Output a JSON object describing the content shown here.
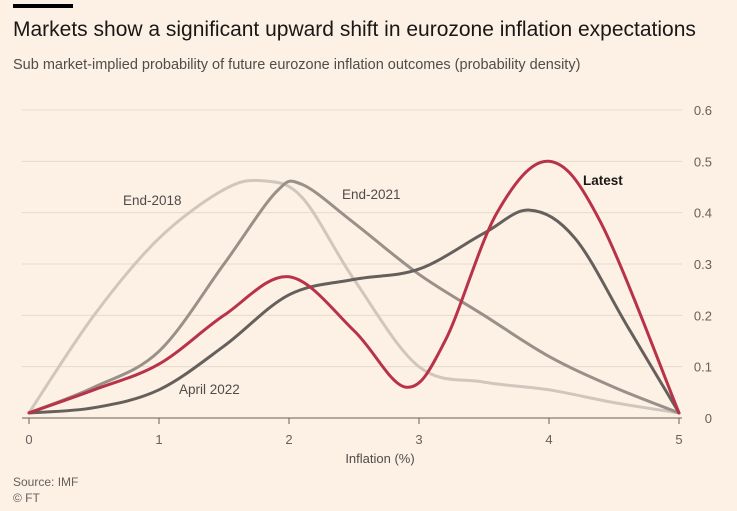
{
  "header": {
    "title": "Markets show a significant upward shift in eurozone inflation expectations",
    "subtitle": "Sub market-implied probability of future eurozone inflation outcomes (probability density)"
  },
  "footer": {
    "source": "Source: IMF",
    "credit": "© FT"
  },
  "chart_data": {
    "type": "line",
    "title": "Markets show a significant upward shift in eurozone inflation expectations",
    "subtitle": "Sub market-implied probability of future eurozone inflation outcomes (probability density)",
    "xlabel": "Inflation (%)",
    "ylabel": "",
    "xlim": [
      0,
      5
    ],
    "ylim": [
      0,
      0.6
    ],
    "x_ticks": [
      "0",
      "1",
      "2",
      "3",
      "4",
      "5"
    ],
    "y_ticks": [
      "0",
      "0.1",
      "0.2",
      "0.3",
      "0.4",
      "0.5",
      "0.6"
    ],
    "y_axis_position": "right",
    "grid": "horizontal",
    "legend": "direct labels",
    "series": [
      {
        "name": "End-2018",
        "color": "#d1c6bd",
        "stroke_width": 3,
        "label_bold": false,
        "points": [
          [
            0,
            0.01
          ],
          [
            0.5,
            0.2
          ],
          [
            1,
            0.35
          ],
          [
            1.5,
            0.445
          ],
          [
            1.8,
            0.462
          ],
          [
            2.1,
            0.43
          ],
          [
            2.5,
            0.27
          ],
          [
            3,
            0.1
          ],
          [
            3.5,
            0.07
          ],
          [
            4,
            0.055
          ],
          [
            4.5,
            0.03
          ],
          [
            5,
            0.01
          ]
        ]
      },
      {
        "name": "End-2021",
        "color": "#999089",
        "stroke_width": 3,
        "label_bold": false,
        "points": [
          [
            0,
            0.01
          ],
          [
            0.5,
            0.06
          ],
          [
            1,
            0.13
          ],
          [
            1.5,
            0.3
          ],
          [
            1.9,
            0.44
          ],
          [
            2.1,
            0.455
          ],
          [
            2.5,
            0.38
          ],
          [
            3,
            0.28
          ],
          [
            3.5,
            0.2
          ],
          [
            4,
            0.12
          ],
          [
            4.5,
            0.06
          ],
          [
            5,
            0.01
          ]
        ]
      },
      {
        "name": "April 2022",
        "color": "#66605c",
        "stroke_width": 3,
        "label_bold": false,
        "points": [
          [
            0,
            0.01
          ],
          [
            0.5,
            0.02
          ],
          [
            1,
            0.055
          ],
          [
            1.5,
            0.14
          ],
          [
            2,
            0.24
          ],
          [
            2.5,
            0.27
          ],
          [
            3,
            0.29
          ],
          [
            3.5,
            0.36
          ],
          [
            3.85,
            0.405
          ],
          [
            4.2,
            0.35
          ],
          [
            4.6,
            0.18
          ],
          [
            5,
            0.01
          ]
        ]
      },
      {
        "name": "Latest",
        "color": "#b8334a",
        "stroke_width": 3,
        "label_bold": true,
        "points": [
          [
            0,
            0.01
          ],
          [
            0.5,
            0.055
          ],
          [
            1,
            0.105
          ],
          [
            1.5,
            0.2
          ],
          [
            2,
            0.275
          ],
          [
            2.5,
            0.17
          ],
          [
            2.9,
            0.06
          ],
          [
            3.2,
            0.15
          ],
          [
            3.6,
            0.4
          ],
          [
            4,
            0.5
          ],
          [
            4.4,
            0.38
          ],
          [
            5,
            0.01
          ]
        ]
      }
    ]
  }
}
